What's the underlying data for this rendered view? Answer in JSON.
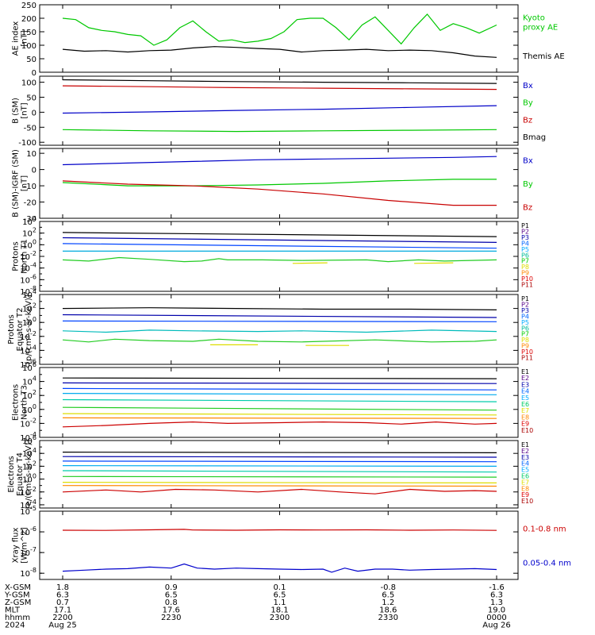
{
  "chart_data": [
    {
      "type": "line",
      "ylabel": [
        "AE index",
        "[nT]"
      ],
      "yticks": [
        "250",
        "200",
        "150",
        "100",
        "50",
        "0"
      ],
      "ylim": [
        0,
        250
      ],
      "series": [
        {
          "name": "Kyoto proxy AE",
          "label_lines": [
            "Kyoto",
            "proxy AE"
          ],
          "color": "#00c800",
          "x": [
            0,
            0.03,
            0.06,
            0.09,
            0.12,
            0.15,
            0.18,
            0.21,
            0.24,
            0.27,
            0.3,
            0.33,
            0.36,
            0.39,
            0.42,
            0.45,
            0.48,
            0.51,
            0.54,
            0.57,
            0.6,
            0.63,
            0.66,
            0.69,
            0.72,
            0.75,
            0.78,
            0.81,
            0.84,
            0.87,
            0.9,
            0.93,
            0.96,
            1.0
          ],
          "values": [
            200,
            195,
            165,
            155,
            150,
            140,
            135,
            100,
            120,
            165,
            190,
            150,
            115,
            120,
            110,
            115,
            125,
            150,
            195,
            200,
            200,
            165,
            120,
            175,
            205,
            155,
            105,
            165,
            215,
            155,
            180,
            165,
            145,
            175
          ]
        },
        {
          "name": "Themis AE",
          "label_lines": [
            "Themis AE"
          ],
          "color": "#000000",
          "x": [
            0,
            0.05,
            0.1,
            0.15,
            0.2,
            0.25,
            0.3,
            0.35,
            0.4,
            0.45,
            0.5,
            0.55,
            0.6,
            0.65,
            0.7,
            0.75,
            0.8,
            0.85,
            0.9,
            0.95,
            1.0
          ],
          "values": [
            85,
            78,
            80,
            75,
            80,
            82,
            90,
            95,
            92,
            88,
            85,
            75,
            80,
            82,
            85,
            80,
            82,
            80,
            72,
            60,
            55
          ]
        }
      ]
    },
    {
      "type": "line",
      "ylabel": [
        "B (SM)",
        "[nT]"
      ],
      "yticks": [
        "100",
        "50",
        "0",
        "-50",
        "-100"
      ],
      "ylim": [
        -110,
        120
      ],
      "series": [
        {
          "name": "Bx",
          "color": "#0000c8",
          "x": [
            0,
            0.2,
            0.4,
            0.6,
            0.8,
            1.0
          ],
          "values": [
            -3,
            1,
            6,
            10,
            16,
            22
          ]
        },
        {
          "name": "By",
          "color": "#00c800",
          "x": [
            0,
            0.2,
            0.4,
            0.6,
            0.8,
            1.0
          ],
          "values": [
            -58,
            -62,
            -64,
            -62,
            -60,
            -58
          ]
        },
        {
          "name": "Bz",
          "color": "#c80000",
          "x": [
            0,
            0.2,
            0.4,
            0.6,
            0.8,
            1.0
          ],
          "values": [
            88,
            85,
            82,
            80,
            78,
            76
          ]
        },
        {
          "name": "Bmag",
          "color": "#000000",
          "x": [
            0,
            0.2,
            0.4,
            0.6,
            0.8,
            1.0
          ],
          "values": [
            108,
            105,
            102,
            100,
            98,
            96
          ]
        }
      ]
    },
    {
      "type": "line",
      "ylabel": [
        "B (SM)-IGRF (SM)",
        "[nT]"
      ],
      "yticks": [
        "10",
        "0",
        "-10",
        "-20",
        "-30"
      ],
      "ylim": [
        -30,
        13
      ],
      "series": [
        {
          "name": "Bx",
          "color": "#0000c8",
          "x": [
            0,
            0.15,
            0.3,
            0.45,
            0.6,
            0.75,
            0.9,
            1.0
          ],
          "values": [
            3,
            4,
            5,
            6,
            6.5,
            7,
            7.5,
            8
          ]
        },
        {
          "name": "By",
          "color": "#00c800",
          "x": [
            0,
            0.15,
            0.3,
            0.45,
            0.6,
            0.75,
            0.9,
            1.0
          ],
          "values": [
            -8,
            -10,
            -10,
            -9.5,
            -8.5,
            -7,
            -6,
            -6
          ]
        },
        {
          "name": "Bz",
          "color": "#c80000",
          "x": [
            0,
            0.15,
            0.3,
            0.45,
            0.6,
            0.75,
            0.9,
            1.0
          ],
          "values": [
            -7,
            -9,
            -10,
            -12,
            -15,
            -19,
            -22,
            -22
          ]
        }
      ]
    },
    {
      "type": "line",
      "log": true,
      "ylabel": [
        "Protons",
        "North T1"
      ],
      "yticks": [
        4,
        2,
        0,
        -2,
        -4,
        -6,
        -8
      ],
      "ylim": [
        -8,
        4
      ],
      "legend": [
        "P1",
        "P2",
        "P3",
        "P4",
        "P5",
        "P6",
        "P7",
        "P8",
        "P9",
        "P10",
        "P11"
      ],
      "series": [
        {
          "color": "#000000",
          "x": [
            0,
            1
          ],
          "values": [
            2.1,
            1.4
          ]
        },
        {
          "color": "#0000aa",
          "x": [
            0,
            1
          ],
          "values": [
            1.2,
            0.4
          ]
        },
        {
          "color": "#0044ff",
          "x": [
            0,
            1
          ],
          "values": [
            0.2,
            -0.6
          ]
        },
        {
          "color": "#00aadd",
          "x": [
            0,
            1
          ],
          "values": [
            -1.1,
            -1.1
          ]
        },
        {
          "color": "#22cc22",
          "x": [
            0,
            0.06,
            0.13,
            0.2,
            0.28,
            0.32,
            0.36,
            0.38,
            0.46,
            0.55,
            0.7,
            0.75,
            0.82,
            0.88,
            1.0
          ],
          "values": [
            -2.6,
            -2.8,
            -2.2,
            -2.5,
            -2.9,
            -2.8,
            -2.4,
            -2.6,
            -2.6,
            -2.7,
            -2.6,
            -2.9,
            -2.6,
            -2.8,
            -2.6
          ]
        },
        {
          "color": "#dddd00",
          "x": [
            0.53,
            0.61
          ],
          "values": [
            -3.2,
            -3.1
          ]
        },
        {
          "color": "#dddd00",
          "x": [
            0.81,
            0.9
          ],
          "values": [
            -3.2,
            -3.1
          ]
        }
      ]
    },
    {
      "type": "line",
      "log": true,
      "ylabel": [
        "Protons",
        "Equator T2",
        "[p/(cm²-s-sr-keV)]"
      ],
      "yticks": [
        4,
        2,
        0,
        -2,
        -4,
        -6
      ],
      "ylim": [
        -6,
        4
      ],
      "legend": [
        "P1",
        "P2",
        "P3",
        "P4",
        "P5",
        "P6",
        "P7",
        "P8",
        "P9",
        "P10",
        "P11"
      ],
      "series": [
        {
          "color": "#000000",
          "x": [
            0,
            0.2,
            0.4,
            0.6,
            0.8,
            1.0
          ],
          "values": [
            2.0,
            2.1,
            2.0,
            1.9,
            1.9,
            1.8
          ]
        },
        {
          "color": "#0000aa",
          "x": [
            0,
            1
          ],
          "values": [
            1.1,
            0.7
          ]
        },
        {
          "color": "#0044ff",
          "x": [
            0,
            1
          ],
          "values": [
            0.2,
            0.1
          ]
        },
        {
          "color": "#00bbbb",
          "x": [
            0,
            0.1,
            0.2,
            0.3,
            0.45,
            0.55,
            0.7,
            0.85,
            1.0
          ],
          "values": [
            -1.2,
            -1.4,
            -1.1,
            -1.2,
            -1.3,
            -1.2,
            -1.4,
            -1.1,
            -1.3
          ]
        },
        {
          "color": "#22cc22",
          "x": [
            0,
            0.06,
            0.12,
            0.2,
            0.3,
            0.36,
            0.45,
            0.55,
            0.72,
            0.85,
            0.95,
            1.0
          ],
          "values": [
            -2.5,
            -2.8,
            -2.4,
            -2.6,
            -2.7,
            -2.4,
            -2.7,
            -2.8,
            -2.5,
            -2.8,
            -2.7,
            -2.5
          ]
        },
        {
          "color": "#dddd00",
          "x": [
            0.34,
            0.45
          ],
          "values": [
            -3.2,
            -3.2
          ]
        },
        {
          "color": "#dddd00",
          "x": [
            0.56,
            0.66
          ],
          "values": [
            -3.3,
            -3.3
          ]
        }
      ]
    },
    {
      "type": "line",
      "log": true,
      "ylabel": [
        "Electrons",
        "North T3"
      ],
      "yticks": [
        6,
        4,
        2,
        0,
        -2,
        -4
      ],
      "ylim": [
        -4,
        6
      ],
      "legend": [
        "E1",
        "E2",
        "E3",
        "E4",
        "E5",
        "E6",
        "E7",
        "E8",
        "E9",
        "E10"
      ],
      "series": [
        {
          "color": "#000000",
          "x": [
            0,
            1
          ],
          "values": [
            4.5,
            4.4
          ]
        },
        {
          "color": "#0000aa",
          "x": [
            0,
            1
          ],
          "values": [
            3.8,
            3.7
          ]
        },
        {
          "color": "#0044ff",
          "x": [
            0,
            1
          ],
          "values": [
            3.0,
            2.8
          ]
        },
        {
          "color": "#00aaee",
          "x": [
            0,
            1
          ],
          "values": [
            2.3,
            2.1
          ]
        },
        {
          "color": "#00ccaa",
          "x": [
            0,
            1
          ],
          "values": [
            1.4,
            1.1
          ]
        },
        {
          "color": "#22cc22",
          "x": [
            0,
            1
          ],
          "values": [
            0.3,
            -0.1
          ]
        },
        {
          "color": "#dddd00",
          "x": [
            0,
            1
          ],
          "values": [
            -0.6,
            -0.8
          ]
        },
        {
          "color": "#ff8800",
          "x": [
            0,
            1
          ],
          "values": [
            -1.2,
            -1.3
          ]
        },
        {
          "color": "#cc0000",
          "x": [
            0,
            0.1,
            0.2,
            0.3,
            0.38,
            0.5,
            0.6,
            0.7,
            0.78,
            0.86,
            0.95,
            1.0
          ],
          "values": [
            -2.5,
            -2.3,
            -2.0,
            -1.8,
            -2.0,
            -1.9,
            -1.8,
            -1.9,
            -2.1,
            -1.8,
            -2.1,
            -2.0
          ]
        }
      ]
    },
    {
      "type": "line",
      "log": true,
      "ylabel": [
        "Electrons",
        "Equator T4",
        "[e/(cm²-s-sr-keV)]"
      ],
      "yticks": [
        6,
        4,
        2,
        0,
        -2,
        -4
      ],
      "ylim": [
        -4.5,
        6
      ],
      "legend": [
        "E1",
        "E2",
        "E3",
        "E4",
        "E5",
        "E6",
        "E7",
        "E8",
        "E9",
        "E10"
      ],
      "series": [
        {
          "color": "#000000",
          "x": [
            0,
            1
          ],
          "values": [
            4.2,
            4.1
          ]
        },
        {
          "color": "#0000aa",
          "x": [
            0,
            1
          ],
          "values": [
            3.5,
            3.4
          ]
        },
        {
          "color": "#0044ff",
          "x": [
            0,
            1
          ],
          "values": [
            2.8,
            2.7
          ]
        },
        {
          "color": "#00aaee",
          "x": [
            0,
            1
          ],
          "values": [
            2.1,
            2.0
          ]
        },
        {
          "color": "#00ccaa",
          "x": [
            0,
            1
          ],
          "values": [
            1.3,
            1.1
          ]
        },
        {
          "color": "#22cc22",
          "x": [
            0,
            1
          ],
          "values": [
            0.4,
            0.3
          ]
        },
        {
          "color": "#dddd00",
          "x": [
            0,
            1
          ],
          "values": [
            -0.5,
            -0.6
          ]
        },
        {
          "color": "#ff8800",
          "x": [
            0,
            1
          ],
          "values": [
            -1.0,
            -1.1
          ]
        },
        {
          "color": "#cc0000",
          "x": [
            0,
            0.1,
            0.18,
            0.26,
            0.35,
            0.45,
            0.55,
            0.64,
            0.72,
            0.8,
            0.88,
            0.95,
            1.0
          ],
          "values": [
            -2.0,
            -1.7,
            -2.0,
            -1.6,
            -1.7,
            -2.0,
            -1.6,
            -2.0,
            -2.3,
            -1.6,
            -1.9,
            -1.8,
            -1.9
          ]
        }
      ]
    },
    {
      "type": "line",
      "log": true,
      "ylabel": [
        "Xray flux",
        "[W/m^2]"
      ],
      "yticks": [
        -5,
        -6,
        -7,
        -8
      ],
      "ylim": [
        -8.3,
        -5
      ],
      "series": [
        {
          "name": "0.1-0.8 nm",
          "color": "#cc0000",
          "x": [
            0,
            0.1,
            0.2,
            0.28,
            0.3,
            0.4,
            0.5,
            0.6,
            0.7,
            0.8,
            0.9,
            1.0
          ],
          "values": [
            -5.92,
            -5.93,
            -5.9,
            -5.88,
            -5.91,
            -5.92,
            -5.9,
            -5.91,
            -5.9,
            -5.92,
            -5.91,
            -5.93
          ]
        },
        {
          "name": "0.05-0.4 nm",
          "color": "#0000cc",
          "x": [
            0,
            0.05,
            0.1,
            0.15,
            0.2,
            0.25,
            0.28,
            0.31,
            0.35,
            0.4,
            0.45,
            0.5,
            0.55,
            0.6,
            0.62,
            0.65,
            0.68,
            0.72,
            0.76,
            0.8,
            0.85,
            0.9,
            0.95,
            1.0
          ],
          "values": [
            -7.9,
            -7.85,
            -7.8,
            -7.78,
            -7.7,
            -7.75,
            -7.55,
            -7.75,
            -7.8,
            -7.75,
            -7.78,
            -7.8,
            -7.82,
            -7.8,
            -7.95,
            -7.75,
            -7.9,
            -7.8,
            -7.8,
            -7.85,
            -7.82,
            -7.8,
            -7.78,
            -7.82
          ]
        }
      ]
    }
  ],
  "time_axis": {
    "row_labels": [
      "X-GSM",
      "Y-GSM",
      "Z-GSM",
      "MLT",
      "hhmm",
      "2024"
    ],
    "columns": [
      {
        "values": [
          "1.8",
          "6.3",
          "0.7",
          "17.1",
          "2200",
          "Aug 25"
        ]
      },
      {
        "values": [
          "0.9",
          "6.5",
          "0.8",
          "17.6",
          "2230",
          ""
        ]
      },
      {
        "values": [
          "0.1",
          "6.5",
          "1.1",
          "18.1",
          "2300",
          ""
        ]
      },
      {
        "values": [
          "-0.8",
          "6.5",
          "1.2",
          "18.6",
          "2330",
          ""
        ]
      },
      {
        "values": [
          "-1.6",
          "6.3",
          "1.3",
          "19.0",
          "0000",
          "Aug 26"
        ]
      }
    ]
  }
}
